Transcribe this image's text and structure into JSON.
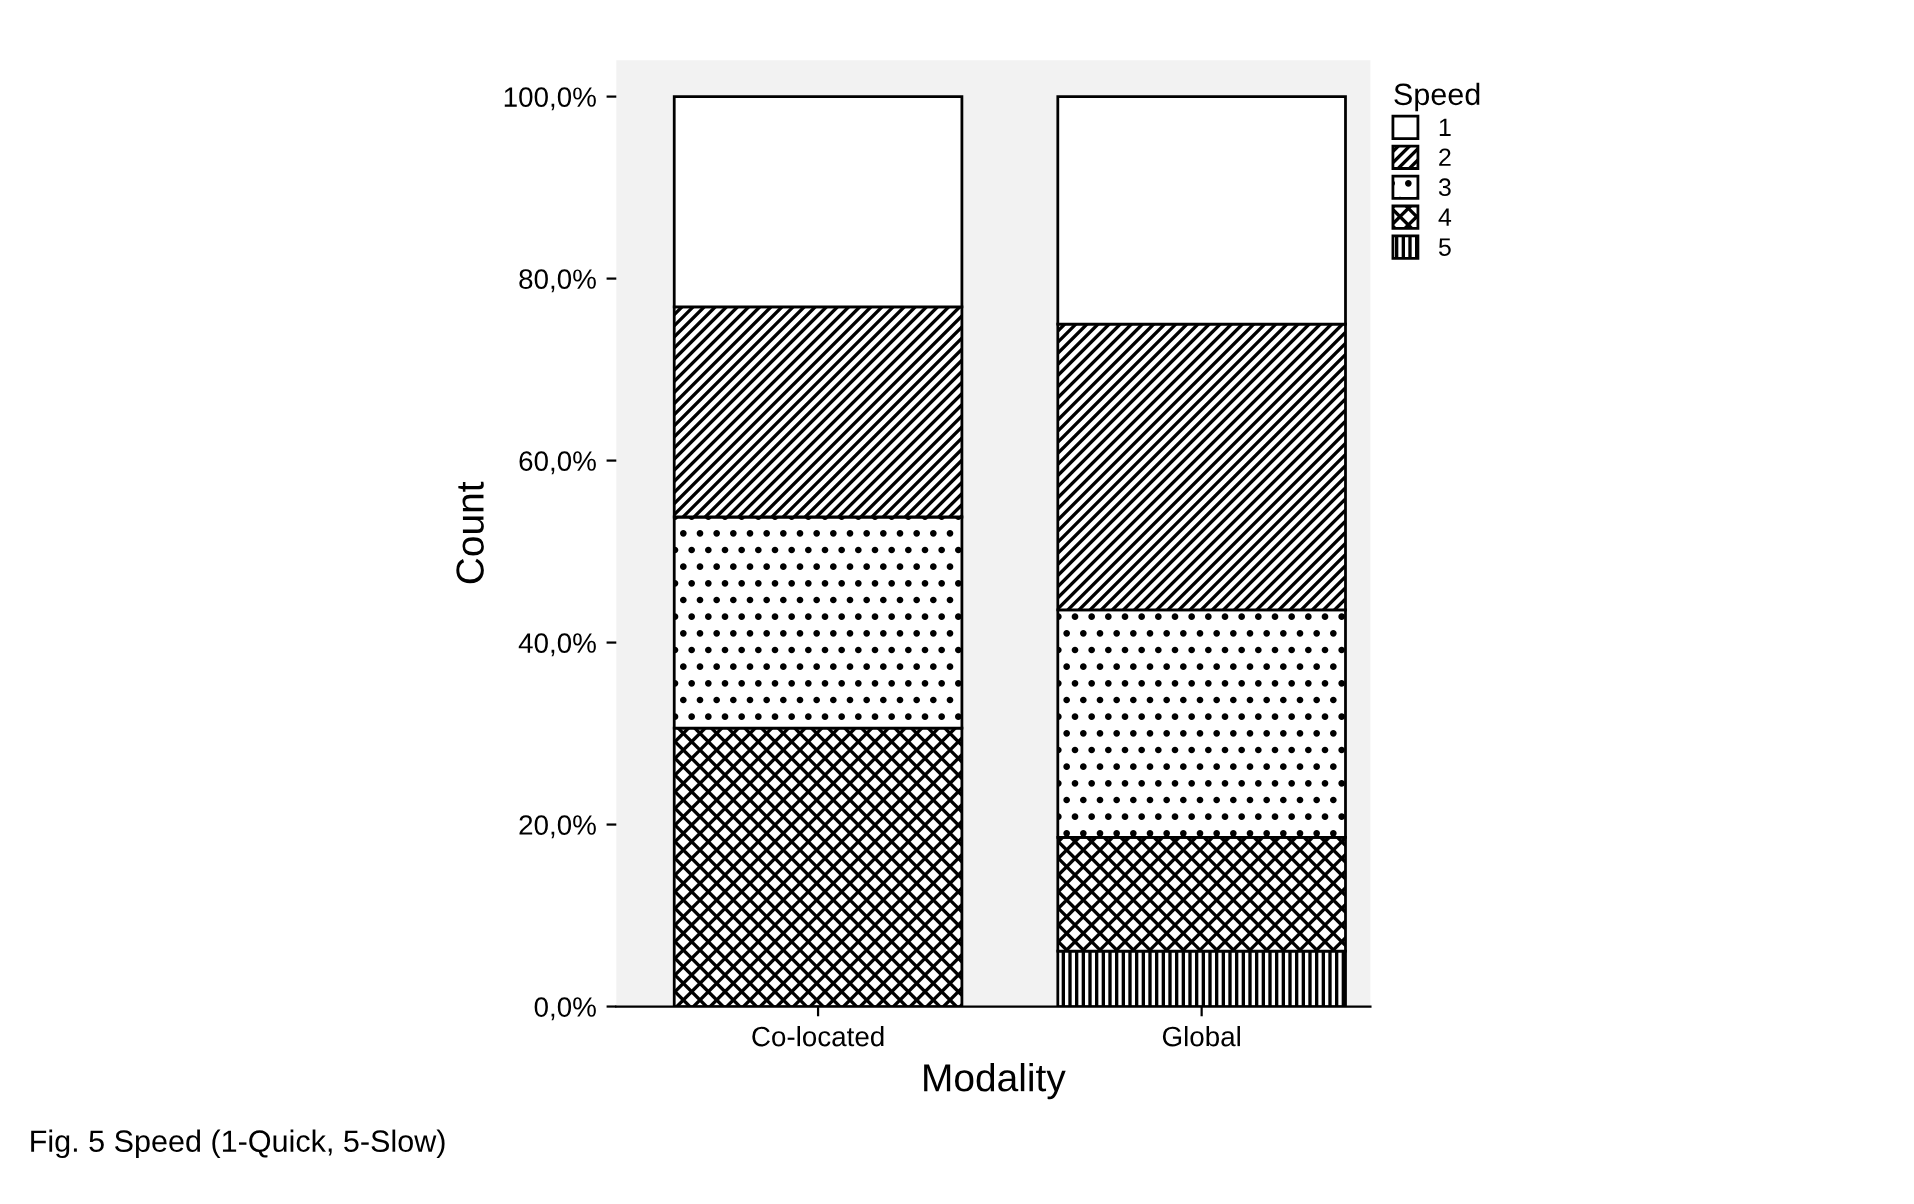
{
  "chart_data": {
    "type": "bar",
    "stacked": true,
    "xlabel": "Modality",
    "ylabel": "Count",
    "legend_title": "Speed",
    "legend": "top right",
    "categories": [
      "Co-located",
      "Global"
    ],
    "series": [
      {
        "name": "5",
        "color": "#000000",
        "values": [
          0,
          6.1
        ]
      },
      {
        "name": "4",
        "color": "#000000",
        "values": [
          30.6,
          12.5
        ]
      },
      {
        "name": "3",
        "color": "#000000",
        "values": [
          23.2,
          25.0
        ]
      },
      {
        "name": "2",
        "color": "#000000",
        "values": [
          23.1,
          31.4
        ]
      },
      {
        "name": "1",
        "color": "#ffffff",
        "values": [
          23.1,
          25.0
        ]
      }
    ],
    "ylim": [
      0,
      104
    ],
    "yticks": [
      {
        "value": 0,
        "label": "0,0%"
      },
      {
        "value": 20,
        "label": "20,0%"
      },
      {
        "value": 40,
        "label": "40,0%"
      },
      {
        "value": 60,
        "label": "60,0%"
      },
      {
        "value": 80,
        "label": "80,0%"
      },
      {
        "value": 100,
        "label": "100,0%"
      }
    ],
    "grid": false,
    "annotations": [
      "Fig. 5 Speed (1-Quick, 5-Slow)"
    ]
  }
}
